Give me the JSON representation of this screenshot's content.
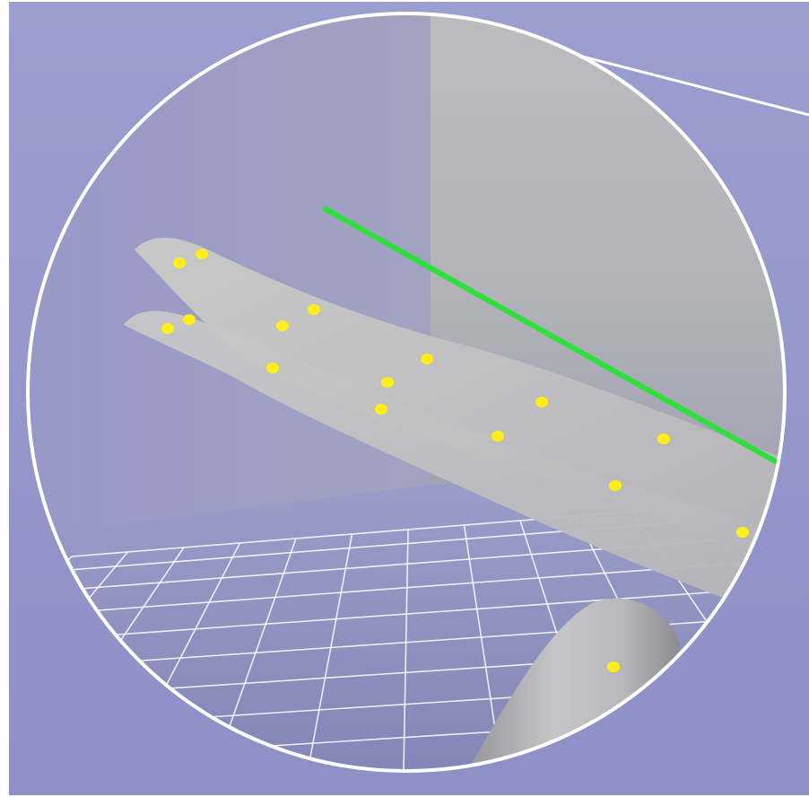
{
  "colors": {
    "background": "#9a9ccd",
    "back_wall": "#b8b8bc",
    "floor": "#8a8ab8",
    "grid_line": "#ffffff",
    "surface": "#c4c4c4",
    "surface_shadow": "#a9a9ae",
    "marker": "#ffef14",
    "pointer_line": "#2ee03c",
    "lens_ring": "#ffffff"
  },
  "icons": {
    "lens": "magnifier-lens",
    "marker": "yellow-dot-marker",
    "pointer": "green-ray"
  }
}
